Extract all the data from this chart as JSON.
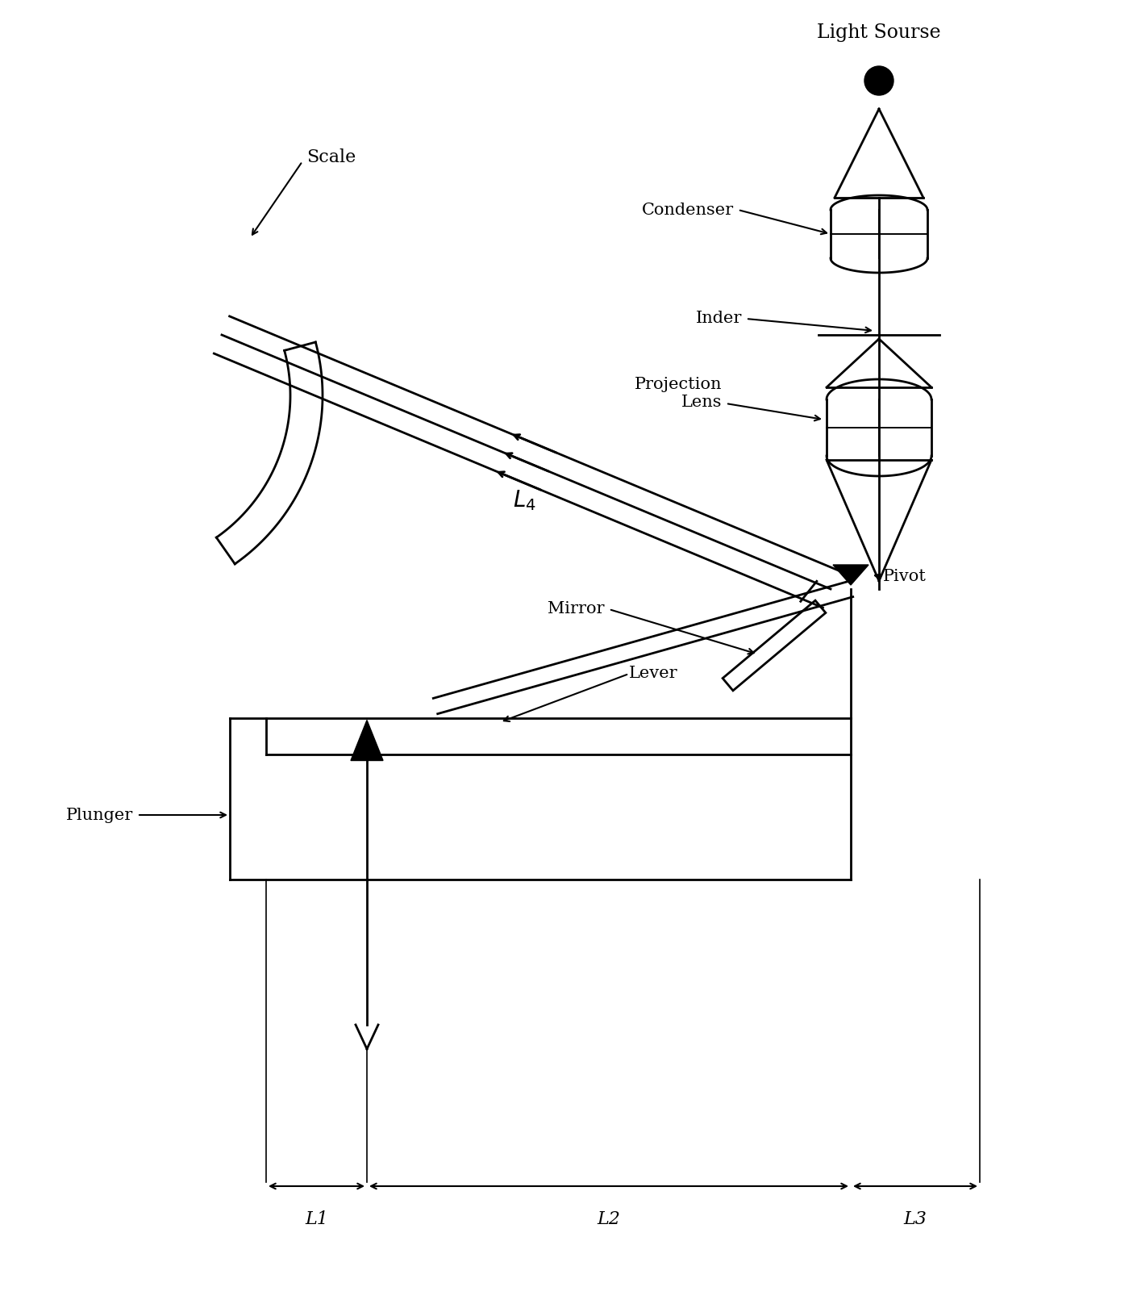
{
  "bg_color": "#ffffff",
  "line_color": "#000000",
  "figsize": [
    14.05,
    16.21
  ],
  "dpi": 100,
  "labels": {
    "light_source": "Light Sourse",
    "condenser": "Condenser",
    "inder": "Inder",
    "projection_lens": "Projection\nLens",
    "pivot": "Pivot",
    "mirror": "Mirror",
    "lever": "Lever",
    "plunger": "Plunger",
    "scale": "Scale",
    "L1": "L1",
    "L2": "L2",
    "L3": "L3",
    "L4": "L4"
  }
}
